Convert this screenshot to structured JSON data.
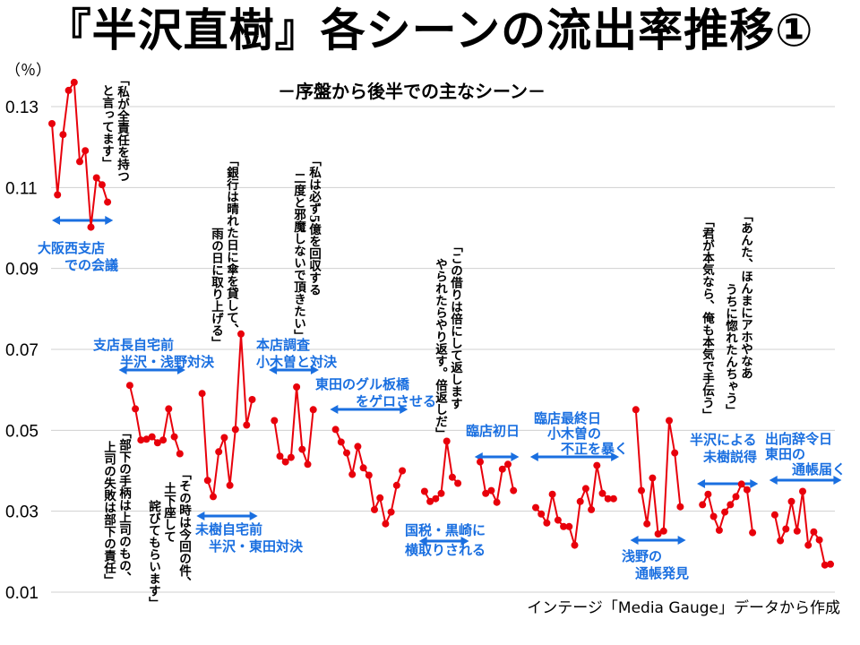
{
  "colors": {
    "line": "#e8000b",
    "label": "#1a6fe0",
    "grid": "#d0d0d0"
  },
  "chart_data": {
    "type": "line",
    "title": "『半沢直樹』各シーンの流出率推移①",
    "subtitle": "－序盤から後半での主なシーン－",
    "ylabel": "（％）",
    "ylim": [
      0.01,
      0.13
    ],
    "yticks": [
      "0.13",
      "0.11",
      "0.09",
      "0.07",
      "0.05",
      "0.03",
      "0.01"
    ],
    "ytick_values": [
      0.13,
      0.11,
      0.09,
      0.07,
      0.05,
      0.03,
      0.01
    ],
    "xlim": [
      0,
      140
    ],
    "grid": true,
    "source": "インテージ「Media Gauge」データから作成",
    "segments": [
      {
        "x": [
          0,
          1,
          2,
          3,
          4,
          5,
          6,
          7,
          8,
          9,
          10
        ],
        "y": [
          0.1258,
          0.1082,
          0.1231,
          0.134,
          0.136,
          0.1164,
          0.1191,
          0.1002,
          0.1124,
          0.1107,
          0.1064
        ]
      },
      {
        "x": [
          14,
          15,
          16,
          17,
          18,
          19,
          20,
          21,
          22,
          23
        ],
        "y": [
          0.0611,
          0.0553,
          0.0476,
          0.0478,
          0.0484,
          0.0469,
          0.0476,
          0.0553,
          0.0484,
          0.0442
        ]
      },
      {
        "x": [
          27,
          28,
          29,
          30,
          31,
          32,
          33,
          34,
          35,
          36
        ],
        "y": [
          0.0591,
          0.0376,
          0.0336,
          0.0447,
          0.0482,
          0.0364,
          0.0502,
          0.0738,
          0.0513,
          0.0576
        ]
      },
      {
        "x": [
          40,
          41,
          42,
          43,
          44,
          45,
          46,
          47
        ],
        "y": [
          0.0524,
          0.0436,
          0.0422,
          0.0433,
          0.0607,
          0.0453,
          0.0416,
          0.0551
        ]
      },
      {
        "x": [
          51,
          52,
          53,
          54,
          55,
          56,
          57,
          58,
          59,
          60,
          61,
          62,
          63
        ],
        "y": [
          0.0502,
          0.0471,
          0.0444,
          0.0391,
          0.046,
          0.0407,
          0.0389,
          0.0304,
          0.0333,
          0.0269,
          0.0298,
          0.0364,
          0.04
        ]
      },
      {
        "x": [
          67,
          68,
          69,
          70,
          71,
          72,
          73
        ],
        "y": [
          0.0349,
          0.0324,
          0.0331,
          0.0344,
          0.0473,
          0.0384,
          0.0369
        ]
      },
      {
        "x": [
          77,
          78,
          79,
          80,
          81,
          82,
          83
        ],
        "y": [
          0.0422,
          0.0344,
          0.0351,
          0.0322,
          0.0404,
          0.0416,
          0.0351
        ]
      },
      {
        "x": [
          87,
          88,
          89,
          90,
          91,
          92,
          93,
          94,
          95,
          96,
          97,
          98,
          99,
          100,
          101
        ],
        "y": [
          0.0309,
          0.0293,
          0.0271,
          0.0342,
          0.0278,
          0.0262,
          0.0262,
          0.0216,
          0.0324,
          0.0356,
          0.0304,
          0.0413,
          0.0344,
          0.0331,
          0.0331
        ]
      },
      {
        "x": [
          105,
          106,
          107,
          108,
          109,
          110,
          111,
          112,
          113
        ],
        "y": [
          0.0551,
          0.0351,
          0.0269,
          0.0382,
          0.0244,
          0.0251,
          0.0524,
          0.0444,
          0.0311
        ]
      },
      {
        "x": [
          117,
          118,
          119,
          120,
          121,
          122,
          123,
          124,
          125,
          126
        ],
        "y": [
          0.0316,
          0.0342,
          0.0287,
          0.0253,
          0.0298,
          0.0316,
          0.0336,
          0.0367,
          0.0353,
          0.0247
        ]
      },
      {
        "x": [
          130,
          131,
          132,
          133,
          134,
          135,
          136,
          137,
          138,
          139,
          140
        ],
        "y": [
          0.0291,
          0.0227,
          0.0256,
          0.0324,
          0.0251,
          0.0349,
          0.0216,
          0.0249,
          0.0229,
          0.0167,
          0.0169
        ]
      }
    ],
    "scenes": [
      {
        "lines": [
          "大阪西支店",
          "　　での会議"
        ],
        "range": [
          0,
          11
        ]
      },
      {
        "lines": [
          "支店長自宅前",
          "　　半沢・浅野対決"
        ],
        "range": [
          12,
          24
        ]
      },
      {
        "lines": [
          "未樹自宅前",
          "　半沢・東田対決"
        ],
        "range": [
          26,
          37
        ]
      },
      {
        "lines": [
          "本店調査",
          "小木曽と対決"
        ],
        "range": [
          39,
          48
        ]
      },
      {
        "lines": [
          "東田のグル板橋",
          "　　　をゲロさせる"
        ],
        "range": [
          50,
          64
        ]
      },
      {
        "lines": [
          "国税・黒崎に",
          "横取りされる"
        ],
        "range": [
          66,
          75
        ]
      },
      {
        "lines": [
          "臨店初日"
        ],
        "range": [
          76,
          84
        ]
      },
      {
        "lines": [
          "臨店最終日",
          "　小木曽の",
          "　　不正を暴く"
        ],
        "range": [
          86,
          102
        ]
      },
      {
        "lines": [
          "浅野の",
          "　通帳発見"
        ],
        "range": [
          104,
          114
        ]
      },
      {
        "lines": [
          "半沢による",
          "　未樹説得"
        ],
        "range": [
          116,
          127
        ]
      },
      {
        "lines": [
          "出向辞令日",
          "東田の",
          "　　通帳届く"
        ],
        "range": [
          129,
          142
        ]
      }
    ],
    "quotes": [
      {
        "lines": [
          "「私が全責任を持つ",
          "と言ってます」"
        ]
      },
      {
        "lines": [
          "「部下の手柄は上司のもの、",
          "上司の失敗は部下の責任」"
        ]
      },
      {
        "lines": [
          "「その時は今回の件、",
          "土下座して",
          "詫びてもらいます」"
        ]
      },
      {
        "lines": [
          "「銀行は晴れた日に傘を貸して、",
          "雨の日に取り上げる」"
        ]
      },
      {
        "lines": [
          "「私は必ず5億を回収する",
          "二度と邪魔しないで頂きたい」"
        ]
      },
      {
        "lines": [
          "「この借りは倍にして返します",
          "やられたらやり返す。倍返しだ」"
        ]
      },
      {
        "lines": [
          "「君が本気なら、俺も本気で手伝う」"
        ]
      },
      {
        "lines": [
          "「あんた、ほんまにアホやなあ",
          "うちに惚れたんちゃう」"
        ]
      }
    ]
  }
}
